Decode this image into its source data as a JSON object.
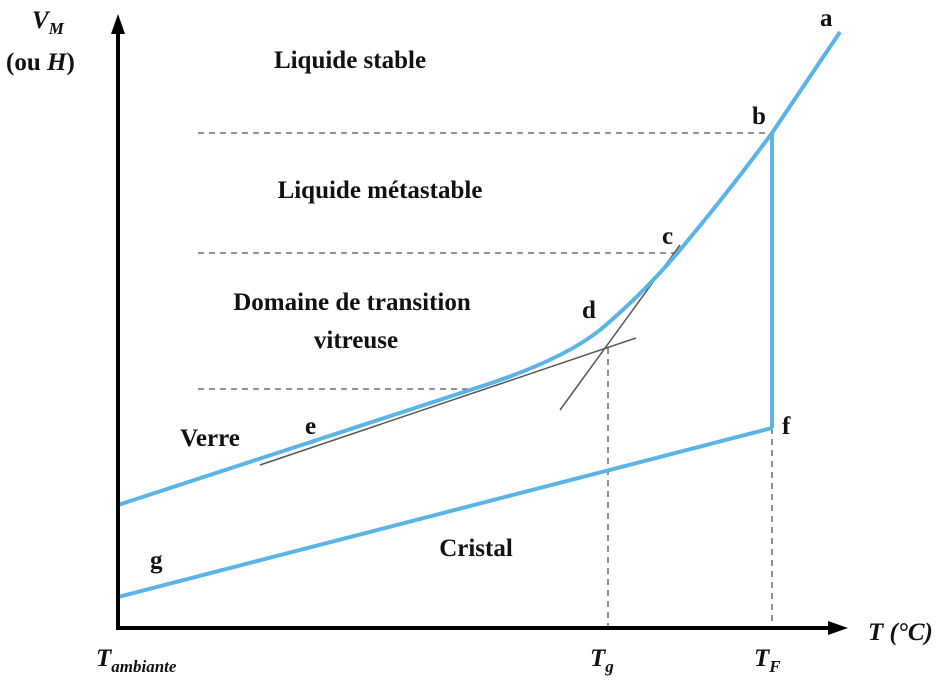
{
  "axes": {
    "y_label": {
      "main": "V",
      "sub": "M"
    },
    "y_label_alt": [
      "(ou ",
      "H",
      ")"
    ],
    "x_label": "T (°C)"
  },
  "x_ticks": [
    {
      "main": "T",
      "sub": "ambiante"
    },
    {
      "main": "T",
      "sub": "g"
    },
    {
      "main": "T",
      "sub": "F"
    }
  ],
  "regions": [
    "Liquide stable",
    "Liquide métastable",
    "Domaine de transition",
    "vitreuse",
    "Verre",
    "Cristal"
  ],
  "points": [
    "a",
    "b",
    "c",
    "d",
    "e",
    "f",
    "g"
  ]
}
